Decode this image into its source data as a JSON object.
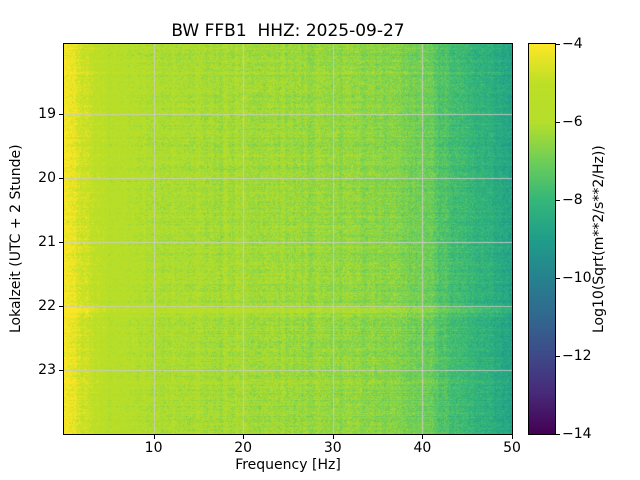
{
  "chart_data": {
    "type": "heatmap",
    "title": "BW FFB1  HHZ: 2025-09-27",
    "xlabel": "Frequency [Hz]",
    "ylabel": "Lokalzeit (UTC + 2 Stunde)",
    "colorbar_label": "Log10(Sqrt(m**2/s**2/Hz))",
    "colormap": "viridis",
    "grid": true,
    "background": "#ffffff",
    "grid_color": "#cccccc",
    "xlim": [
      0,
      50
    ],
    "ylim_hours": [
      17.9,
      24.0
    ],
    "clim": [
      -14,
      -4
    ],
    "xticks": {
      "values": [
        10,
        20,
        30,
        40,
        50
      ],
      "labels": [
        "10",
        "20",
        "30",
        "40",
        "50"
      ]
    },
    "yticks": {
      "values": [
        19,
        20,
        21,
        22,
        23
      ],
      "labels": [
        "19",
        "20",
        "21",
        "22",
        "23"
      ]
    },
    "cbar_ticks": {
      "values": [
        -4,
        -6,
        -8,
        -10,
        -12,
        -14
      ],
      "labels": [
        "−4",
        "−6",
        "−8",
        "−10",
        "−12",
        "−14"
      ]
    },
    "spectrum_profile": {
      "freq_hz": [
        0,
        0.5,
        1,
        1.5,
        2,
        3,
        4,
        5,
        6,
        8,
        10,
        13,
        16,
        20,
        24,
        28,
        32,
        36,
        40,
        43,
        46,
        48,
        50
      ],
      "log10_amplitude": [
        -4.0,
        -4.1,
        -4.3,
        -4.5,
        -4.75,
        -5.1,
        -5.35,
        -5.55,
        -5.7,
        -5.9,
        -6.0,
        -6.1,
        -6.15,
        -6.25,
        -6.3,
        -6.4,
        -6.5,
        -6.65,
        -6.95,
        -7.6,
        -8.1,
        -8.4,
        -8.7
      ]
    },
    "time_events": [
      {
        "hour": 18.35,
        "half_width": 0.04,
        "boost": 0.3
      },
      {
        "hour": 19.3,
        "half_width": 0.05,
        "boost": 0.25
      },
      {
        "hour": 20.6,
        "half_width": 0.03,
        "boost": 0.25
      },
      {
        "hour": 21.62,
        "half_width": 0.04,
        "boost": 0.3
      },
      {
        "hour": 22.07,
        "half_width": 0.09,
        "boost": 0.5
      },
      {
        "hour": 23.2,
        "half_width": 0.04,
        "boost": 0.25
      }
    ],
    "noise_std": 0.28,
    "row_noise_std": 0.11,
    "column_noise_std": 0.14,
    "viridis_stops": [
      [
        68,
        1,
        84
      ],
      [
        72,
        40,
        120
      ],
      [
        62,
        74,
        137
      ],
      [
        49,
        104,
        142
      ],
      [
        38,
        130,
        142
      ],
      [
        31,
        158,
        137
      ],
      [
        53,
        183,
        121
      ],
      [
        110,
        206,
        88
      ],
      [
        181,
        222,
        43
      ],
      [
        189,
        223,
        38
      ],
      [
        253,
        231,
        37
      ]
    ]
  }
}
